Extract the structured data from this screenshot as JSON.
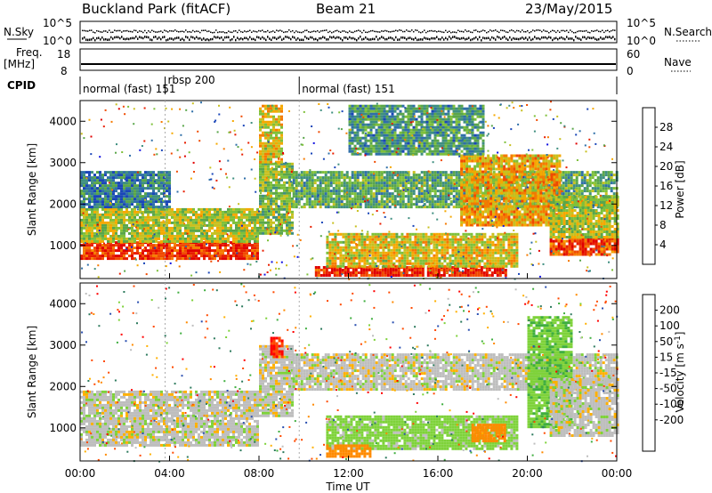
{
  "header": {
    "site": "Buckland Park (fitACF)",
    "beam": "Beam 21",
    "date": "23/May/2015"
  },
  "panels": {
    "noise": {
      "left_label": "N.Sky",
      "right_label": "N.Search",
      "ytick_top": "10^5",
      "ytick_bottom": "10^0"
    },
    "freq": {
      "left_label_1": "Freq.",
      "left_label_2": "[MHz]",
      "right_label": "Nave",
      "ytick_left_top": "18",
      "ytick_left_bottom": "8",
      "ytick_right_top": "60",
      "ytick_right_bottom": "0"
    },
    "cpid": {
      "label": "CPID",
      "segments": [
        {
          "start_hour": 0,
          "end_hour": 3.8,
          "name": "normal (fast) 151"
        },
        {
          "start_hour": 3.8,
          "end_hour": 9.8,
          "name": "rbsp 200"
        },
        {
          "start_hour": 9.8,
          "end_hour": 24,
          "name": "normal (fast) 151"
        }
      ]
    }
  },
  "colors": {
    "power": [
      "#1010e0",
      "#1a46b8",
      "#2f6fa8",
      "#3f8f80",
      "#5aa64a",
      "#7ec03a",
      "#c8c020",
      "#f5a800",
      "#f57a00",
      "#f04a00",
      "#e81e00",
      "#e00000"
    ],
    "velocity": [
      "#ff0000",
      "#ff4a00",
      "#ff8a00",
      "#ffb000",
      "#bebebe",
      "#7ed23a",
      "#3fae3f",
      "#2e7b5e",
      "#2a4fb0",
      "#1a2ad8"
    ]
  },
  "chart_data": [
    {
      "type": "heatmap",
      "name": "power",
      "xlabel": "",
      "ylabel": "Slant Range [km]",
      "xlim": [
        0,
        24
      ],
      "ylim": [
        200,
        4500
      ],
      "yticks": [
        1000,
        2000,
        3000,
        4000
      ],
      "ytick_labels": [
        "1000",
        "2000",
        "3000",
        "4000"
      ],
      "colorbar": {
        "label": "Power [dB]",
        "range": [
          0,
          32
        ],
        "ticks": [
          4,
          8,
          12,
          16,
          20,
          24,
          28
        ],
        "tick_labels": [
          "4",
          "8",
          "12",
          "16",
          "20",
          "24",
          "28"
        ]
      },
      "regions": [
        {
          "x0": 0,
          "x1": 8.0,
          "y0": 700,
          "y1": 1100,
          "value": 27
        },
        {
          "x0": 0,
          "x1": 8.0,
          "y0": 1100,
          "y1": 1900,
          "value": 16
        },
        {
          "x0": 0,
          "x1": 4.0,
          "y0": 1900,
          "y1": 2800,
          "value": 8
        },
        {
          "x0": 8.0,
          "x1": 9.5,
          "y0": 1300,
          "y1": 3000,
          "value": 14
        },
        {
          "x0": 8.0,
          "x1": 9.0,
          "y0": 3000,
          "y1": 4400,
          "value": 18
        },
        {
          "x0": 9.5,
          "x1": 24,
          "y0": 1900,
          "y1": 2800,
          "value": 12
        },
        {
          "x0": 10.5,
          "x1": 19.0,
          "y0": 300,
          "y1": 500,
          "value": 28
        },
        {
          "x0": 11.0,
          "x1": 19.5,
          "y0": 500,
          "y1": 1300,
          "value": 18
        },
        {
          "x0": 17.0,
          "x1": 19.0,
          "y0": 1500,
          "y1": 3200,
          "value": 20
        },
        {
          "x0": 19.0,
          "x1": 21.5,
          "y0": 1500,
          "y1": 3200,
          "value": 20
        },
        {
          "x0": 21.0,
          "x1": 24,
          "y0": 800,
          "y1": 1200,
          "value": 26
        },
        {
          "x0": 21.0,
          "x1": 24,
          "y0": 1200,
          "y1": 2200,
          "value": 16
        },
        {
          "x0": 12.0,
          "x1": 18.0,
          "y0": 3200,
          "y1": 4400,
          "value": 10
        }
      ]
    },
    {
      "type": "heatmap",
      "name": "velocity",
      "xlabel": "Time UT",
      "ylabel": "Slant Range [km]",
      "xlim": [
        0,
        24
      ],
      "ylim": [
        200,
        4500
      ],
      "xticks": [
        0,
        4,
        8,
        12,
        16,
        20,
        24
      ],
      "xtick_labels": [
        "00:00",
        "04:00",
        "08:00",
        "12:00",
        "16:00",
        "20:00",
        "00:00"
      ],
      "yticks": [
        1000,
        2000,
        3000,
        4000
      ],
      "ytick_labels": [
        "1000",
        "2000",
        "3000",
        "4000"
      ],
      "colorbar": {
        "label": "Velocity [m s^-1]",
        "range": [
          -250,
          250
        ],
        "ticks": [
          200,
          100,
          50,
          15,
          -15,
          -50,
          -100,
          -200
        ],
        "tick_labels": [
          "200",
          "100",
          "50",
          "15",
          "-15",
          "-50",
          "-100",
          "-200"
        ]
      },
      "regions": [
        {
          "x0": 0,
          "x1": 8.0,
          "y0": 600,
          "y1": 1900,
          "value": 0
        },
        {
          "x0": 8.0,
          "x1": 9.5,
          "y0": 1300,
          "y1": 3000,
          "value": 0
        },
        {
          "x0": 8.5,
          "x1": 9.0,
          "y0": 2700,
          "y1": 3200,
          "value": -200
        },
        {
          "x0": 9.5,
          "x1": 24,
          "y0": 1900,
          "y1": 2800,
          "value": 0
        },
        {
          "x0": 11.0,
          "x1": 19.5,
          "y0": 500,
          "y1": 1300,
          "value": 30
        },
        {
          "x0": 11.0,
          "x1": 13.0,
          "y0": 300,
          "y1": 600,
          "value": -80
        },
        {
          "x0": 17.5,
          "x1": 19.0,
          "y0": 700,
          "y1": 1100,
          "value": -80
        },
        {
          "x0": 20.0,
          "x1": 22.0,
          "y0": 1000,
          "y1": 3700,
          "value": 40
        },
        {
          "x0": 21.0,
          "x1": 24,
          "y0": 800,
          "y1": 2200,
          "value": 0
        }
      ]
    }
  ]
}
